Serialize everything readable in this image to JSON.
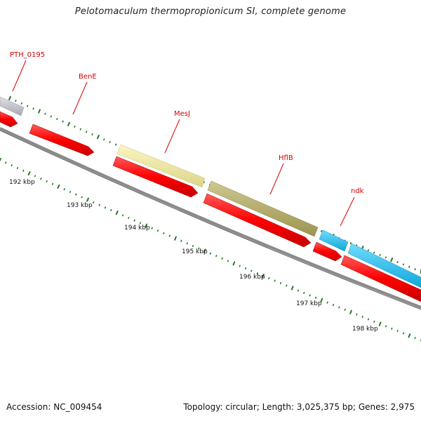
{
  "title": "Pelotomaculum thermopropionicum SI, complete genome",
  "footer": {
    "accession": "Accession: NC_009454",
    "topology": "Topology: circular; Length: 3,025,375 bp; Genes: 2,975"
  },
  "colors": {
    "backbone": "#808080",
    "tick": "#1e7a1e",
    "forward_cds": "#ff0000",
    "label": "#d40000",
    "gray_gene": "#c0c0c8",
    "yellow_gene": "#f0eaa0",
    "olive_gene": "#b8b070",
    "cyan_gene": "#30c0ee"
  },
  "scale_labels": [
    "192 kbp",
    "193 kbp",
    "194 kbp",
    "195 kbp",
    "196 kbp",
    "197 kbp",
    "198 kbp"
  ],
  "gene_labels": [
    "PTH_0195",
    "BenE",
    "MesJ",
    "HflB",
    "ndk"
  ]
}
